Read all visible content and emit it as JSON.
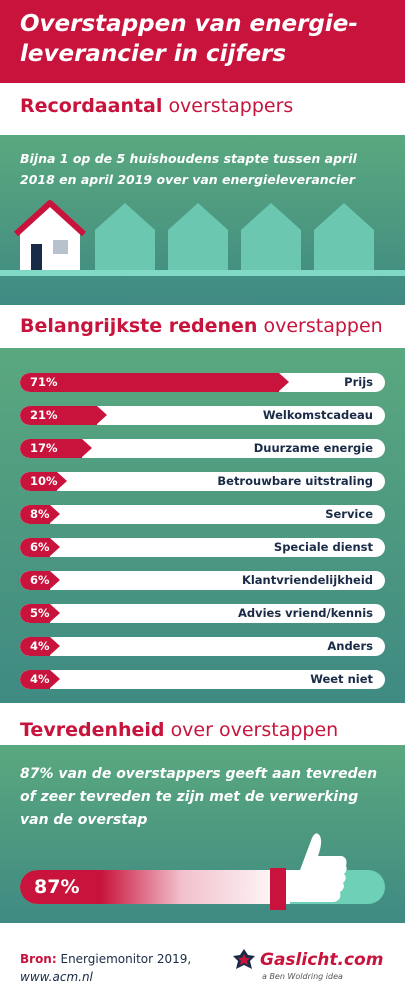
{
  "header": {
    "title": "Overstappen van energie-leverancier in cijfers"
  },
  "section1": {
    "heading_bold": "Recordaantal",
    "heading_rest": "overstappers",
    "text": "Bijna 1 op de 5 huishoudens stapte tussen april 2018 en april 2019 over van energieleverancier"
  },
  "section2": {
    "heading_bold": "Belangrijkste redenen",
    "heading_rest": "overstappen"
  },
  "section3": {
    "heading_bold": "Tevredenheid",
    "heading_rest": "over overstappen",
    "text": "87% van de overstappers geeft aan tevreden of zeer tevreden te zijn met de verwerking van de overstap",
    "bar_label": "87%",
    "bar_value": 87
  },
  "footer": {
    "source_label": "Bron:",
    "source_text": "Energiemonitor 2019,",
    "source_url": "www.acm.nl",
    "logo_text": "Gaslicht.com",
    "logo_tagline": "a Ben Woldring idea"
  },
  "colors": {
    "accent": "#c8143c",
    "green_top": "#5aa87f",
    "green_bottom": "#3f8a82",
    "navy": "#1a2b47",
    "mint": "#7fd9c4"
  },
  "chart_data": {
    "type": "bar",
    "title": "Belangrijkste redenen overstappen",
    "categories": [
      "Prijs",
      "Welkomstcadeau",
      "Duurzame energie",
      "Betrouwbare uitstraling",
      "Service",
      "Speciale dienst",
      "Klantvriendelijkheid",
      "Advies vriend/kennis",
      "Anders",
      "Weet niet"
    ],
    "values": [
      71,
      21,
      17,
      10,
      8,
      6,
      6,
      5,
      4,
      4
    ],
    "value_labels": [
      "71%",
      "21%",
      "17%",
      "10%",
      "8%",
      "6%",
      "6%",
      "5%",
      "4%",
      "4%"
    ],
    "xlim": [
      0,
      100
    ]
  }
}
